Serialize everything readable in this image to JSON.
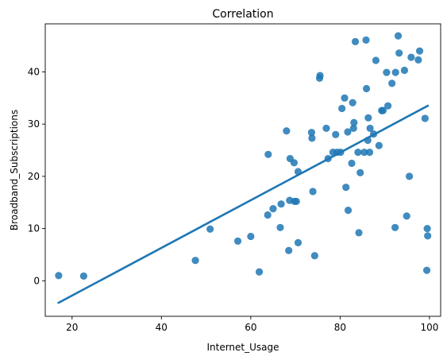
{
  "chart_data": {
    "type": "scatter",
    "title": "Correlation",
    "xlabel": "Internet_Usage",
    "ylabel": "Broadband_Subscriptions",
    "xlim": [
      14,
      102.5
    ],
    "ylim": [
      -6.8,
      49.2
    ],
    "xticks": [
      20,
      40,
      60,
      80,
      100
    ],
    "yticks": [
      0,
      10,
      20,
      30,
      40
    ],
    "grid": false,
    "point_color": "#1f77b4",
    "line_color": "#1f77b4",
    "points": [
      {
        "x": 17.0,
        "y": 1.0
      },
      {
        "x": 22.6,
        "y": 0.9
      },
      {
        "x": 47.6,
        "y": 3.9
      },
      {
        "x": 50.9,
        "y": 9.9
      },
      {
        "x": 57.1,
        "y": 7.6
      },
      {
        "x": 60.0,
        "y": 8.5
      },
      {
        "x": 61.9,
        "y": 1.7
      },
      {
        "x": 63.9,
        "y": 24.2
      },
      {
        "x": 63.8,
        "y": 12.6
      },
      {
        "x": 65.0,
        "y": 13.8
      },
      {
        "x": 66.6,
        "y": 10.2
      },
      {
        "x": 66.8,
        "y": 14.7
      },
      {
        "x": 68.0,
        "y": 28.7
      },
      {
        "x": 68.5,
        "y": 5.8
      },
      {
        "x": 68.7,
        "y": 15.4
      },
      {
        "x": 68.8,
        "y": 23.4
      },
      {
        "x": 69.7,
        "y": 22.6
      },
      {
        "x": 69.8,
        "y": 15.2
      },
      {
        "x": 70.2,
        "y": 15.2
      },
      {
        "x": 70.6,
        "y": 20.9
      },
      {
        "x": 70.6,
        "y": 7.3
      },
      {
        "x": 73.6,
        "y": 28.4
      },
      {
        "x": 73.7,
        "y": 27.3
      },
      {
        "x": 73.9,
        "y": 17.1
      },
      {
        "x": 74.3,
        "y": 4.8
      },
      {
        "x": 75.4,
        "y": 38.8
      },
      {
        "x": 75.5,
        "y": 39.3
      },
      {
        "x": 76.9,
        "y": 29.2
      },
      {
        "x": 77.3,
        "y": 23.4
      },
      {
        "x": 78.4,
        "y": 24.6
      },
      {
        "x": 79.0,
        "y": 28.0
      },
      {
        "x": 79.3,
        "y": 24.6
      },
      {
        "x": 80.1,
        "y": 24.6
      },
      {
        "x": 80.4,
        "y": 33.0
      },
      {
        "x": 81.0,
        "y": 35.0
      },
      {
        "x": 81.3,
        "y": 17.9
      },
      {
        "x": 81.7,
        "y": 28.5
      },
      {
        "x": 81.8,
        "y": 13.5
      },
      {
        "x": 82.6,
        "y": 22.5
      },
      {
        "x": 82.8,
        "y": 34.1
      },
      {
        "x": 83.0,
        "y": 29.2
      },
      {
        "x": 83.1,
        "y": 30.3
      },
      {
        "x": 83.4,
        "y": 45.8
      },
      {
        "x": 84.0,
        "y": 24.6
      },
      {
        "x": 84.2,
        "y": 9.2
      },
      {
        "x": 84.5,
        "y": 20.7
      },
      {
        "x": 85.4,
        "y": 24.6
      },
      {
        "x": 85.8,
        "y": 46.1
      },
      {
        "x": 85.9,
        "y": 36.8
      },
      {
        "x": 86.2,
        "y": 26.9
      },
      {
        "x": 86.3,
        "y": 31.2
      },
      {
        "x": 86.6,
        "y": 24.6
      },
      {
        "x": 86.7,
        "y": 29.2
      },
      {
        "x": 87.5,
        "y": 28.1
      },
      {
        "x": 88.0,
        "y": 42.2
      },
      {
        "x": 88.7,
        "y": 25.9
      },
      {
        "x": 89.3,
        "y": 32.6
      },
      {
        "x": 89.6,
        "y": 32.6
      },
      {
        "x": 90.4,
        "y": 39.9
      },
      {
        "x": 90.7,
        "y": 33.5
      },
      {
        "x": 91.6,
        "y": 37.8
      },
      {
        "x": 92.3,
        "y": 10.2
      },
      {
        "x": 92.4,
        "y": 39.9
      },
      {
        "x": 93.0,
        "y": 46.9
      },
      {
        "x": 93.2,
        "y": 43.6
      },
      {
        "x": 94.4,
        "y": 40.3
      },
      {
        "x": 94.9,
        "y": 12.4
      },
      {
        "x": 95.5,
        "y": 20.0
      },
      {
        "x": 95.9,
        "y": 42.8
      },
      {
        "x": 97.5,
        "y": 42.3
      },
      {
        "x": 97.8,
        "y": 44.0
      },
      {
        "x": 99.0,
        "y": 31.1
      },
      {
        "x": 99.4,
        "y": 2.0
      },
      {
        "x": 99.5,
        "y": 10.0
      },
      {
        "x": 99.6,
        "y": 8.6
      }
    ],
    "regression_line": {
      "x": [
        17.0,
        99.6
      ],
      "y": [
        -4.2,
        33.5
      ]
    }
  }
}
